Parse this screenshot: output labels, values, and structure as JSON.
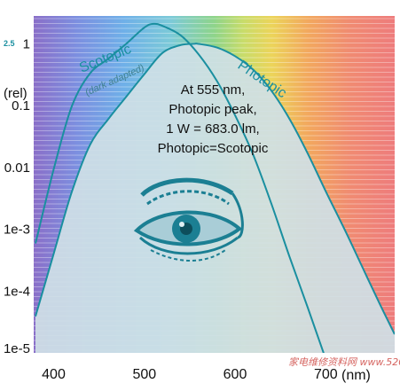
{
  "chart_data": {
    "type": "line",
    "title": "",
    "xlabel": "",
    "ylabel": "(rel)",
    "x_unit_label": "(nm)",
    "xlim": [
      378,
      445
    ],
    "xlim_data": [
      378,
      776
    ],
    "ylim_log10": [
      -5,
      0.45
    ],
    "y_scale": "log",
    "xticks": [
      "400",
      "500",
      "600",
      "700"
    ],
    "yticks": [
      "1",
      "0.1",
      "0.01",
      "1e-3",
      "1e-4",
      "1e-5"
    ],
    "top_tick": "2.5",
    "grid": "horizontal lines",
    "background": "visible spectrum gradient (violet to red)",
    "series": [
      {
        "name": "Scotopic",
        "sublabel": "(dark adapted)",
        "color": "#1a8fa0",
        "x": [
          380,
          400,
          420,
          440,
          460,
          480,
          500,
          510,
          520,
          540,
          560,
          580,
          600,
          620,
          640,
          660,
          680,
          700,
          720
        ],
        "y": [
          0.00059,
          0.0093,
          0.097,
          0.33,
          0.57,
          1.0,
          1.83,
          2.1,
          1.95,
          1.37,
          0.67,
          0.25,
          0.07,
          0.016,
          0.0026,
          0.00036,
          5.5e-05,
          7.9e-06,
          1.2e-06
        ]
      },
      {
        "name": "Photopic",
        "sublabel": "",
        "color": "#1a8fa0",
        "x": [
          380,
          400,
          420,
          440,
          460,
          480,
          500,
          520,
          540,
          555,
          560,
          580,
          600,
          620,
          640,
          660,
          680,
          700,
          720,
          740,
          760,
          776
        ],
        "y": [
          3.9e-05,
          0.0004,
          0.004,
          0.023,
          0.06,
          0.139,
          0.323,
          0.71,
          0.954,
          1.0,
          0.995,
          0.87,
          0.631,
          0.381,
          0.175,
          0.061,
          0.017,
          0.0041,
          0.00105,
          0.00025,
          6e-05,
          2e-05
        ]
      }
    ],
    "annotation": [
      "At 555 nm,",
      "Photopic peak,",
      "1 W = 683.0 lm,",
      "Photopic=Scotopic"
    ]
  },
  "watermark": "家电维修资料网 www.520101.com",
  "colors": {
    "curve": "#1a8fa0",
    "fill": "#c8dce2",
    "eye": "#1b7f93"
  }
}
